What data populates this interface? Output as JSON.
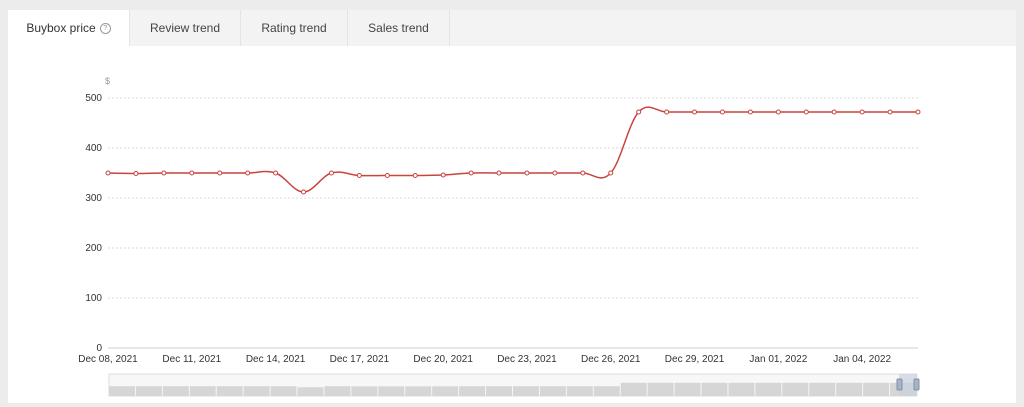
{
  "tabs": [
    {
      "label": "Buybox price",
      "active": true
    },
    {
      "label": "Review trend",
      "active": false
    },
    {
      "label": "Rating trend",
      "active": false
    },
    {
      "label": "Sales trend",
      "active": false
    }
  ],
  "chart_data": {
    "type": "line",
    "title": "",
    "xlabel": "",
    "ylabel": "$",
    "ylim": [
      0,
      500
    ],
    "yticks": [
      0,
      100,
      200,
      300,
      400,
      500
    ],
    "x_tick_labels": [
      "Dec 08, 2021",
      "Dec 11, 2021",
      "Dec 14, 2021",
      "Dec 17, 2021",
      "Dec 20, 2021",
      "Dec 23, 2021",
      "Dec 26, 2021",
      "Dec 29, 2021",
      "Jan 01, 2022",
      "Jan 04, 2022"
    ],
    "grid": true,
    "line_color": "#c9443e",
    "series": [
      {
        "x": [
          "2021-12-08",
          "2021-12-09",
          "2021-12-10",
          "2021-12-11",
          "2021-12-12",
          "2021-12-13",
          "2021-12-14",
          "2021-12-15",
          "2021-12-16",
          "2021-12-17",
          "2021-12-18",
          "2021-12-19",
          "2021-12-20",
          "2021-12-21",
          "2021-12-22",
          "2021-12-23",
          "2021-12-24",
          "2021-12-25",
          "2021-12-26",
          "2021-12-27",
          "2021-12-28",
          "2021-12-29",
          "2021-12-30",
          "2021-12-31",
          "2022-01-01",
          "2022-01-02",
          "2022-01-03",
          "2022-01-04",
          "2022-01-05",
          "2022-01-06"
        ],
        "values": [
          350,
          349,
          350,
          350,
          350,
          350,
          350,
          312,
          350,
          345,
          345,
          345,
          346,
          350,
          350,
          350,
          350,
          350,
          350,
          472,
          472,
          472,
          472,
          472,
          472,
          472,
          472,
          472,
          472,
          472
        ]
      }
    ]
  }
}
